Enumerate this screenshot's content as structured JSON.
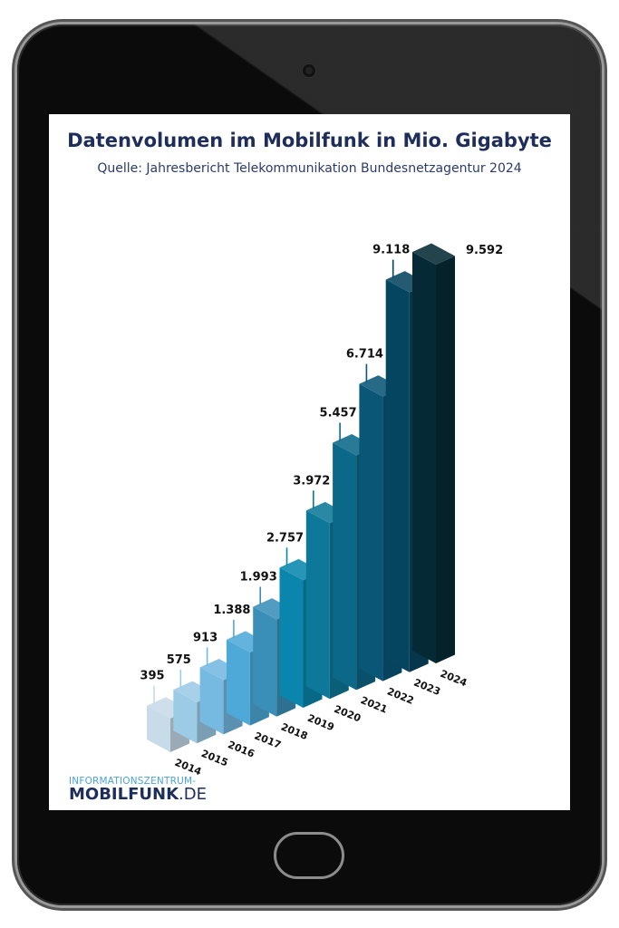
{
  "chart_data": {
    "type": "bar",
    "title": "Datenvolumen im Mobilfunk in Mio. Gigabyte",
    "subtitle": "Quelle: Jahresbericht Telekommunikation Bundesnetzagentur 2024",
    "categories": [
      "2014",
      "2015",
      "2016",
      "2017",
      "2018",
      "2019",
      "2020",
      "2021",
      "2022",
      "2023",
      "2024"
    ],
    "values": [
      395,
      575,
      913,
      1388,
      1993,
      2757,
      3972,
      5457,
      6714,
      9118,
      9592
    ],
    "value_labels": [
      "395",
      "575",
      "913",
      "1.388",
      "1.993",
      "2.757",
      "3.972",
      "5.457",
      "6.714",
      "9.118",
      "9.592"
    ],
    "colors": [
      "#c7dbe8",
      "#9ccbe6",
      "#76b9e1",
      "#4ea9d9",
      "#3a8fb8",
      "#0a86ad",
      "#0d7899",
      "#0b6888",
      "#095677",
      "#064560",
      "#062a35"
    ],
    "style": "3d-isometric",
    "legend": "none",
    "grid": false
  },
  "logo": {
    "line1": "INFORMATIONSZENTRUM-",
    "bold": "MOBILFUNK",
    "suffix": ".DE"
  },
  "device": {
    "camera_icon": "camera-icon",
    "home_icon": "home-button-icon"
  }
}
